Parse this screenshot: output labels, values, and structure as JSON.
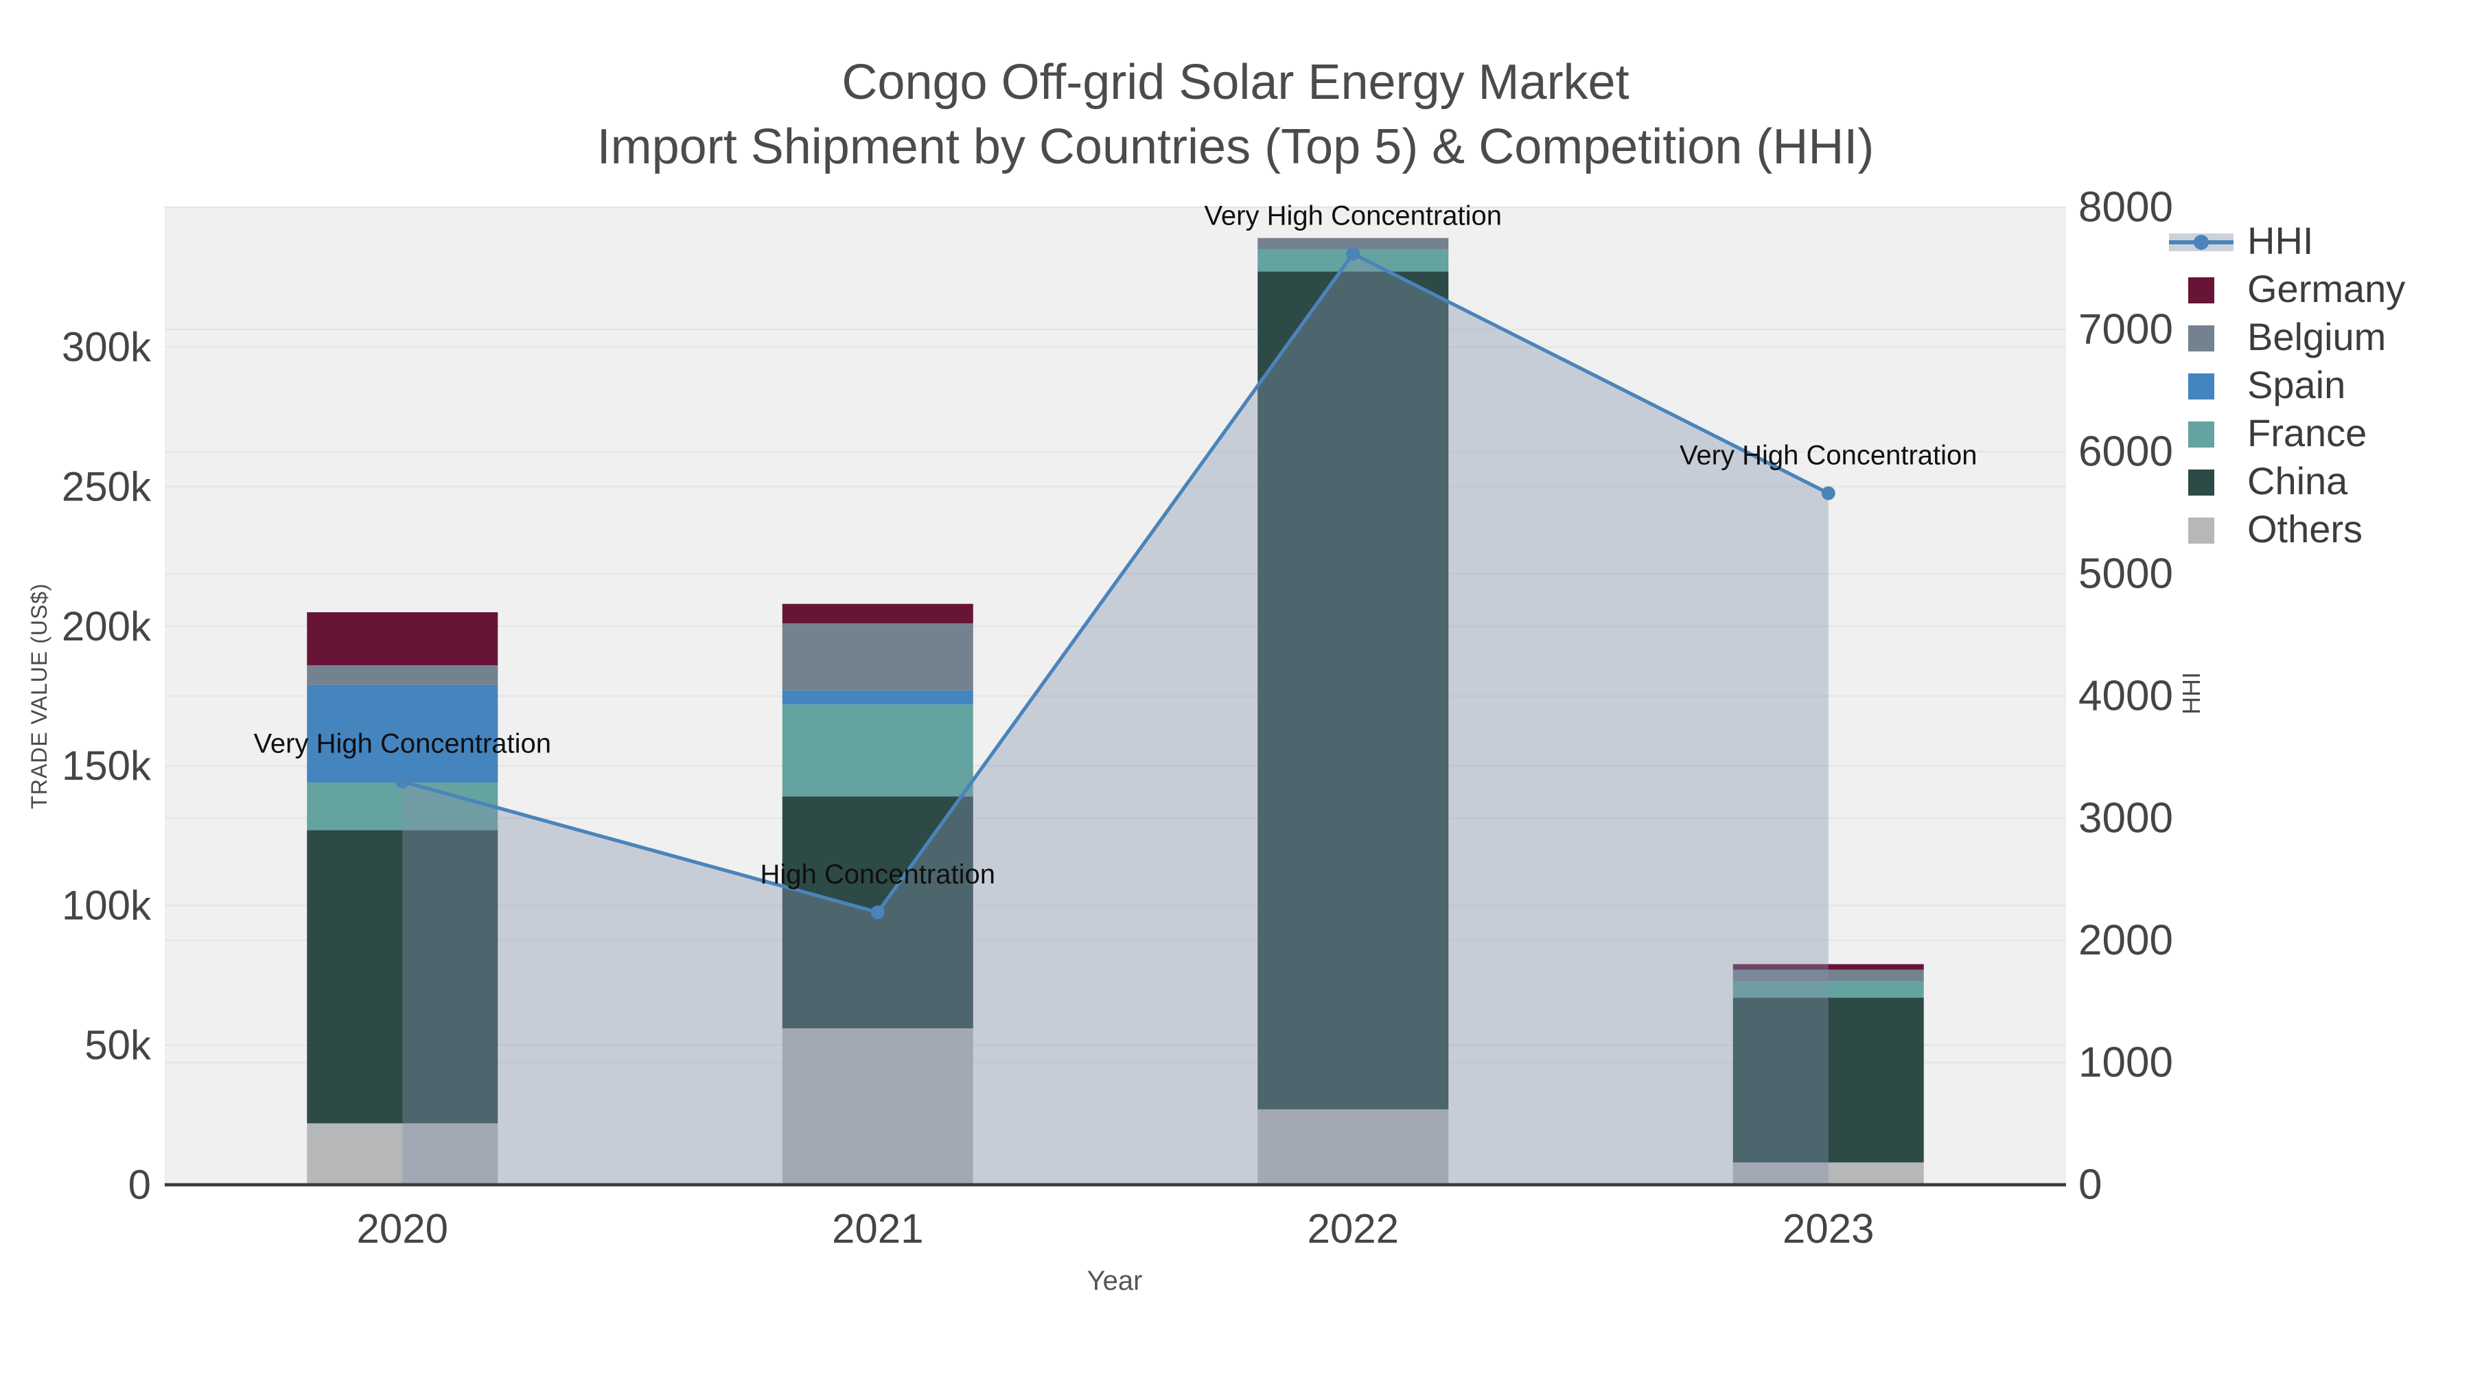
{
  "title": {
    "line1": "Congo Off-grid Solar Energy Market",
    "line2": "Import Shipment by Countries (Top 5) & Competition (HHI)"
  },
  "chart_data": {
    "type": "combo",
    "subtypes": [
      "stacked-bar",
      "line-with-area"
    ],
    "title": "Congo Off-grid Solar Energy Market",
    "subtitle": "Import Shipment by Countries (Top 5) & Competition (HHI)",
    "categories": [
      "2020",
      "2021",
      "2022",
      "2023"
    ],
    "bar_value_unit": "US$ thousands",
    "series": [
      {
        "name": "Others",
        "color": "#b5b7b9",
        "values_k": [
          22,
          56,
          27,
          8
        ]
      },
      {
        "name": "China",
        "color": "#2d4a46",
        "values_k": [
          105,
          83,
          300,
          59
        ]
      },
      {
        "name": "France",
        "color": "#64a39f",
        "values_k": [
          17,
          33,
          8,
          6
        ]
      },
      {
        "name": "Spain",
        "color": "#4484bf",
        "values_k": [
          35,
          5,
          0,
          0
        ]
      },
      {
        "name": "Belgium",
        "color": "#74818f",
        "values_k": [
          7,
          24,
          4,
          4
        ]
      },
      {
        "name": "Germany",
        "color": "#671437",
        "values_k": [
          19,
          7,
          0,
          2
        ]
      }
    ],
    "line_series": {
      "name": "HHI",
      "color": "#4b84ba",
      "area_fill": "rgba(132,148,173,0.38)",
      "values": [
        3300,
        2230,
        7620,
        5660
      ]
    },
    "annotations": [
      {
        "x": "2020",
        "text": "Very High Concentration"
      },
      {
        "x": "2021",
        "text": "High Concentration"
      },
      {
        "x": "2022",
        "text": "Very High Concentration"
      },
      {
        "x": "2023",
        "text": "Very High Concentration"
      }
    ],
    "y_left": {
      "title": "TRADE VALUE (US$)",
      "tick_labels": [
        "0",
        "50k",
        "100k",
        "150k",
        "200k",
        "250k",
        "300k"
      ],
      "tick_step_k": 50,
      "max_k": 350
    },
    "y_right": {
      "title": "HHI",
      "tick_labels": [
        "0",
        "1000",
        "2000",
        "3000",
        "4000",
        "5000",
        "6000",
        "7000",
        "8000"
      ],
      "tick_step": 1000,
      "max": 8000
    },
    "x_axis": {
      "title": "Year"
    },
    "grid": true,
    "legend_position": "right"
  },
  "legend": {
    "items": [
      {
        "id": "hhi",
        "label": "HHI",
        "type": "line-marker",
        "color": "#4b84ba"
      },
      {
        "id": "germany",
        "label": "Germany",
        "type": "swatch",
        "color": "#671437"
      },
      {
        "id": "belgium",
        "label": "Belgium",
        "type": "swatch",
        "color": "#74818f"
      },
      {
        "id": "spain",
        "label": "Spain",
        "type": "swatch",
        "color": "#4484bf"
      },
      {
        "id": "france",
        "label": "France",
        "type": "swatch",
        "color": "#64a39f"
      },
      {
        "id": "china",
        "label": "China",
        "type": "swatch",
        "color": "#2d4a46"
      },
      {
        "id": "others",
        "label": "Others",
        "type": "swatch",
        "color": "#b5b7b9"
      }
    ]
  },
  "colors": {
    "plot_bg": "#f0f0f1",
    "grid": "#e5e6e8",
    "axis_line": "#3b3b3b",
    "tick_label": "#454545",
    "title_text": "#4b4b4b",
    "annotation": "#101010",
    "legend_hhi_band": "#ccd2da"
  }
}
